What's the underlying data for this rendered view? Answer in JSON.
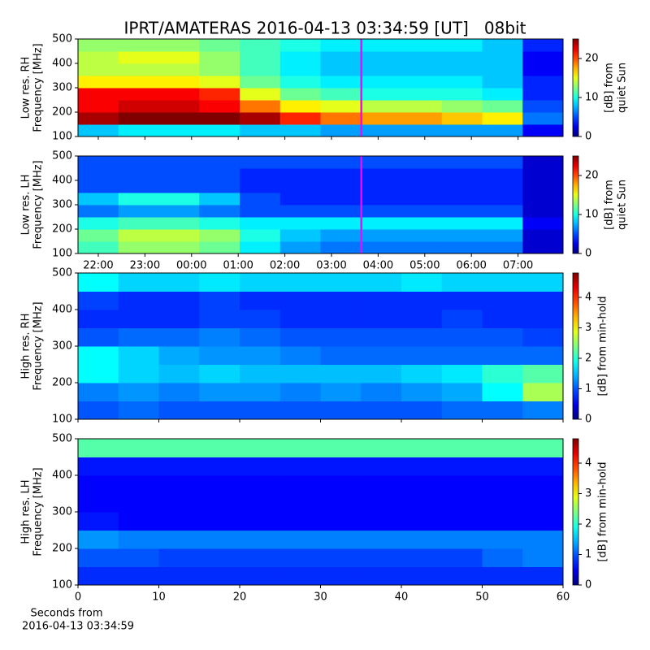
{
  "title": "IPRT/AMATERAS 2016-04-13 03:34:59 [UT]   08bit",
  "chart_data": [
    {
      "type": "heatmap",
      "ylabel": [
        "Low res. RH",
        "Frequency [MHz]"
      ],
      "colorbar_label": [
        "[dB] from",
        "quiet Sun"
      ],
      "xlim": [
        21.565,
        31.965
      ],
      "xticks": [
        22,
        23,
        24,
        25,
        26,
        27,
        28,
        29,
        30,
        31
      ],
      "ylim": [
        100,
        500
      ],
      "yticks": [
        100,
        200,
        300,
        400,
        500
      ],
      "clim": [
        0,
        25
      ],
      "cticks": [
        0,
        10,
        20
      ],
      "vline": 27.64,
      "vline_color": "#ff00ff",
      "z": [
        [
          8,
          9,
          9,
          9,
          8,
          8,
          7,
          7,
          7,
          7,
          7,
          3
        ],
        [
          24,
          25,
          25,
          25,
          24,
          21,
          19,
          18,
          18,
          17,
          16,
          6
        ],
        [
          22,
          23,
          23,
          22,
          19,
          16,
          15,
          14,
          14,
          13,
          12,
          5
        ],
        [
          22,
          22,
          22,
          21,
          15,
          12,
          11,
          10,
          10,
          10,
          9,
          4
        ],
        [
          16,
          16,
          16,
          15,
          12,
          10,
          9,
          9,
          9,
          9,
          8,
          4
        ],
        [
          14,
          14,
          14,
          13,
          11,
          9,
          8,
          8,
          8,
          8,
          8,
          3
        ],
        [
          14,
          15,
          15,
          13,
          11,
          9,
          8,
          8,
          8,
          8,
          8,
          3
        ],
        [
          13,
          13,
          13,
          12,
          11,
          10,
          9,
          9,
          9,
          9,
          8,
          4
        ]
      ]
    },
    {
      "type": "heatmap",
      "ylabel": [
        "Low res. LH",
        "Frequency [MHz]"
      ],
      "colorbar_label": [
        "[dB] from",
        "quiet Sun"
      ],
      "xlim": [
        21.565,
        31.965
      ],
      "xticks": [
        {
          "value": 22,
          "label": "22:00"
        },
        {
          "value": 23,
          "label": "23:00"
        },
        {
          "value": 24,
          "label": "00:00"
        },
        {
          "value": 25,
          "label": "01:00"
        },
        {
          "value": 26,
          "label": "02:00"
        },
        {
          "value": 27,
          "label": "03:00"
        },
        {
          "value": 28,
          "label": "04:00"
        },
        {
          "value": 29,
          "label": "05:00"
        },
        {
          "value": 30,
          "label": "06:00"
        },
        {
          "value": 31,
          "label": "07:00"
        }
      ],
      "ylim": [
        100,
        500
      ],
      "yticks": [
        100,
        200,
        300,
        400,
        500
      ],
      "clim": [
        0,
        25
      ],
      "cticks": [
        0,
        10,
        20
      ],
      "vline": 27.64,
      "vline_color": "#ff00ff",
      "z": [
        [
          11,
          13,
          13,
          12,
          9,
          7,
          6,
          6,
          6,
          6,
          6,
          2
        ],
        [
          12,
          14,
          14,
          13,
          10,
          8,
          7,
          7,
          7,
          7,
          7,
          2
        ],
        [
          10,
          11,
          11,
          10,
          9,
          9,
          9,
          9,
          9,
          9,
          9,
          3
        ],
        [
          6,
          7,
          7,
          6,
          5,
          5,
          5,
          5,
          5,
          5,
          5,
          2
        ],
        [
          8,
          10,
          10,
          8,
          5,
          4,
          4,
          4,
          4,
          4,
          4,
          2
        ],
        [
          5,
          5,
          5,
          5,
          4,
          4,
          4,
          4,
          4,
          4,
          4,
          2
        ],
        [
          5,
          5,
          5,
          5,
          4,
          4,
          4,
          4,
          4,
          4,
          4,
          2
        ],
        [
          5,
          5,
          5,
          5,
          5,
          5,
          5,
          5,
          5,
          5,
          5,
          2
        ]
      ]
    },
    {
      "type": "heatmap",
      "ylabel": [
        "High res. RH",
        "Frequency [MHz]"
      ],
      "colorbar_label": [
        "[dB] from min-hold"
      ],
      "xlim": [
        0,
        60
      ],
      "xticks": [
        0,
        10,
        20,
        30,
        40,
        50,
        60
      ],
      "ylim": [
        100,
        500
      ],
      "yticks": [
        100,
        200,
        300,
        400,
        500
      ],
      "clim": [
        0,
        4.8
      ],
      "cticks": [
        0,
        1,
        2,
        3,
        4
      ],
      "z": [
        [
          1.0,
          1.1,
          1.0,
          1.0,
          1.0,
          1.0,
          1.0,
          1.0,
          1.0,
          1.1,
          1.1,
          1.2
        ],
        [
          1.2,
          1.3,
          1.2,
          1.3,
          1.3,
          1.2,
          1.3,
          1.2,
          1.3,
          1.4,
          1.8,
          2.6
        ],
        [
          1.8,
          1.6,
          1.5,
          1.6,
          1.5,
          1.5,
          1.5,
          1.5,
          1.6,
          1.7,
          2.0,
          2.2
        ],
        [
          1.8,
          1.6,
          1.4,
          1.3,
          1.3,
          1.2,
          1.1,
          1.1,
          1.1,
          1.1,
          1.1,
          1.1
        ],
        [
          1.0,
          1.1,
          1.1,
          1.2,
          1.1,
          1.0,
          1.0,
          1.0,
          1.0,
          1.0,
          1.0,
          0.9
        ],
        [
          0.8,
          0.8,
          0.8,
          0.9,
          0.9,
          0.8,
          0.8,
          0.8,
          0.8,
          0.9,
          0.8,
          0.8
        ],
        [
          0.9,
          0.8,
          0.8,
          0.9,
          0.8,
          0.8,
          0.8,
          0.8,
          0.8,
          0.8,
          0.8,
          0.8
        ],
        [
          1.8,
          1.6,
          1.6,
          1.7,
          1.6,
          1.6,
          1.6,
          1.6,
          1.7,
          1.6,
          1.6,
          1.6
        ]
      ]
    },
    {
      "type": "heatmap",
      "ylabel": [
        "High res. LH",
        "Frequency [MHz]"
      ],
      "colorbar_label": [
        "[dB] from min-hold"
      ],
      "xlabel": [
        "Seconds from",
        "2016-04-13 03:34:59"
      ],
      "xlim": [
        0,
        60
      ],
      "xticks": [
        0,
        10,
        20,
        30,
        40,
        50,
        60
      ],
      "show_xticklabels": true,
      "ylim": [
        100,
        500
      ],
      "yticks": [
        100,
        200,
        300,
        400,
        500
      ],
      "clim": [
        0,
        4.8
      ],
      "cticks": [
        0,
        1,
        2,
        3,
        4
      ],
      "z": [
        [
          0.8,
          0.8,
          0.8,
          0.8,
          0.8,
          0.8,
          0.8,
          0.8,
          0.8,
          0.8,
          0.8,
          0.8
        ],
        [
          1.0,
          1.0,
          0.9,
          0.9,
          0.9,
          0.9,
          0.9,
          0.9,
          0.9,
          0.9,
          1.1,
          1.2
        ],
        [
          1.3,
          1.2,
          1.2,
          1.2,
          1.2,
          1.2,
          1.2,
          1.2,
          1.2,
          1.2,
          1.2,
          1.2
        ],
        [
          0.7,
          0.6,
          0.6,
          0.6,
          0.6,
          0.6,
          0.6,
          0.6,
          0.6,
          0.6,
          0.6,
          0.6
        ],
        [
          0.6,
          0.6,
          0.6,
          0.6,
          0.6,
          0.6,
          0.6,
          0.6,
          0.6,
          0.6,
          0.6,
          0.6
        ],
        [
          0.6,
          0.6,
          0.6,
          0.6,
          0.6,
          0.6,
          0.6,
          0.6,
          0.6,
          0.6,
          0.6,
          0.6
        ],
        [
          0.7,
          0.7,
          0.7,
          0.7,
          0.7,
          0.7,
          0.7,
          0.7,
          0.7,
          0.7,
          0.7,
          0.7
        ],
        [
          2.2,
          2.2,
          2.2,
          2.2,
          2.2,
          2.2,
          2.2,
          2.2,
          2.2,
          2.2,
          2.2,
          2.2
        ]
      ]
    }
  ]
}
